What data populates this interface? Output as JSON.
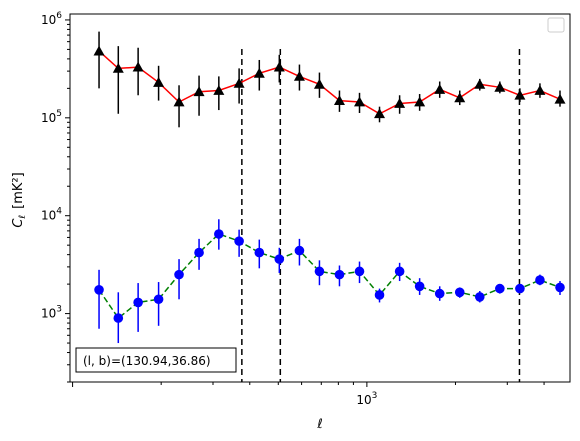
{
  "chart_data": {
    "type": "line",
    "xlabel": "ℓ",
    "ylabel_main": "C",
    "ylabel_sub": "ℓ",
    "ylabel_unit": "[mK²]",
    "xscale": "log",
    "yscale": "log",
    "xlim": [
      98,
      4900
    ],
    "ylim": [
      200,
      1150000
    ],
    "x_tick_labels": [
      {
        "value": 1000,
        "base": "10",
        "exp": "3"
      }
    ],
    "y_tick_labels": [
      {
        "value": 1000,
        "base": "10",
        "exp": "3"
      },
      {
        "value": 10000,
        "base": "10",
        "exp": "4"
      },
      {
        "value": 100000,
        "base": "10",
        "exp": "5"
      },
      {
        "value": 1000000,
        "base": "10",
        "exp": "6"
      }
    ],
    "vertical_dashed_lines": [
      376,
      508,
      3300
    ],
    "annotation": "(l, b)=(130.94,36.86)",
    "legend_placement": "upper-right",
    "grid": false,
    "series": [
      {
        "color": "#000000",
        "line_color": "#ff0000",
        "line_style": "solid",
        "marker": "triangle",
        "x": [
          123,
          143,
          167,
          196,
          230,
          269,
          314,
          368,
          431,
          504,
          590,
          690,
          807,
          944,
          1104,
          1292,
          1511,
          1768,
          2068,
          2419,
          2830,
          3311,
          3873,
          4531
        ],
        "y": [
          480000,
          320000,
          330000,
          230000,
          145000,
          185000,
          190000,
          225000,
          285000,
          330000,
          265000,
          220000,
          150000,
          145000,
          110000,
          140000,
          145000,
          195000,
          160000,
          220000,
          205000,
          170000,
          190000,
          155000
        ],
        "err_low": [
          200000,
          110000,
          170000,
          150000,
          80000,
          105000,
          120000,
          140000,
          190000,
          230000,
          190000,
          160000,
          115000,
          112000,
          90000,
          110000,
          118000,
          160000,
          135000,
          190000,
          178000,
          145000,
          160000,
          130000
        ],
        "err_high": [
          760000,
          540000,
          520000,
          340000,
          215000,
          270000,
          265000,
          320000,
          390000,
          440000,
          350000,
          290000,
          190000,
          180000,
          130000,
          170000,
          175000,
          235000,
          190000,
          250000,
          235000,
          200000,
          225000,
          190000
        ]
      },
      {
        "color": "#0000ff",
        "line_color": "#008000",
        "line_style": "dashed",
        "marker": "circle",
        "x": [
          123,
          143,
          167,
          196,
          230,
          269,
          314,
          368,
          431,
          504,
          590,
          690,
          807,
          944,
          1104,
          1292,
          1511,
          1768,
          2068,
          2419,
          2830,
          3311,
          3873,
          4531
        ],
        "y": [
          1750,
          900,
          1300,
          1400,
          2500,
          4200,
          6500,
          5500,
          4200,
          3600,
          4400,
          2700,
          2500,
          2700,
          1550,
          2700,
          1900,
          1600,
          1650,
          1480,
          1800,
          1800,
          2200,
          1850
        ],
        "err_low": [
          700,
          500,
          650,
          750,
          1400,
          2800,
          4500,
          3800,
          2900,
          2600,
          3100,
          1950,
          1900,
          2050,
          1300,
          2150,
          1550,
          1350,
          1450,
          1300,
          1600,
          1620,
          1950,
          1550
        ],
        "err_high": [
          2800,
          1650,
          2050,
          2100,
          3600,
          5800,
          9200,
          7200,
          5700,
          4700,
          5800,
          3500,
          3100,
          3400,
          1800,
          3300,
          2300,
          1900,
          1850,
          1700,
          2000,
          2000,
          2500,
          2150
        ]
      }
    ]
  }
}
